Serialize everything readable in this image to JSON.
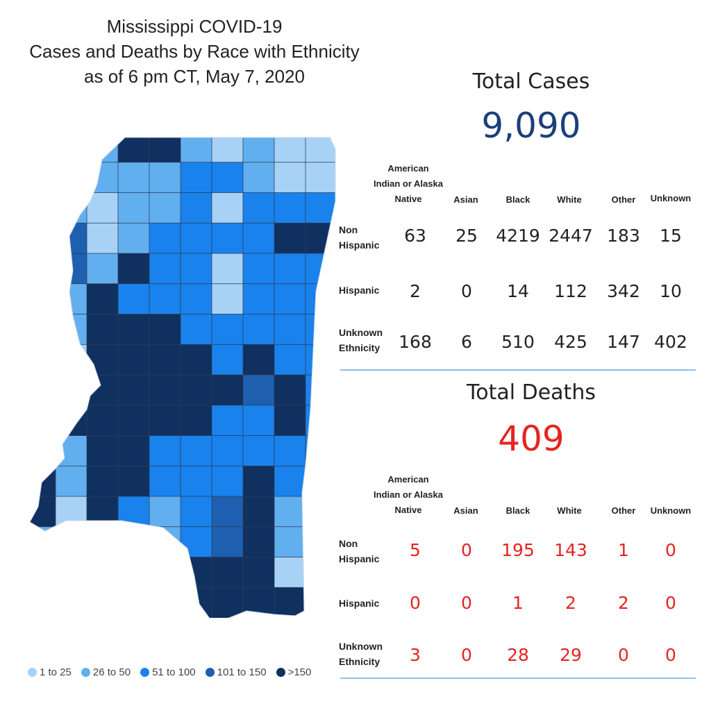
{
  "title": {
    "line1": "Mississippi COVID-19",
    "line2": "Cases and Deaths by Race with Ethnicity",
    "line3": "as of 6 pm CT, May 7, 2020"
  },
  "colors": {
    "cases_number": "#1b3f7a",
    "deaths_number": "#e52420",
    "bin_1_25": "#a8d2f5",
    "bin_26_50": "#62aff0",
    "bin_51_100": "#1a82ec",
    "bin_101_150": "#1e5fb0",
    "bin_over_150": "#10305f",
    "no_cases": "#d8d0cc"
  },
  "legend": [
    {
      "label": "1 to 25",
      "color": "#a8d2f5"
    },
    {
      "label": "26 to 50",
      "color": "#62aff0"
    },
    {
      "label": "51 to 100",
      "color": "#1a82ec"
    },
    {
      "label": "101 to 150",
      "color": "#1e5fb0"
    },
    {
      "label": ">150",
      "color": "#10305f"
    }
  ],
  "cases": {
    "label": "Total Cases",
    "total": "9,090",
    "headers": [
      "American Indian or Alaska Native",
      "Asian",
      "Black",
      "White",
      "Other",
      "Unknown"
    ],
    "rows": [
      {
        "label": "Non Hispanic",
        "values": [
          "63",
          "25",
          "4219",
          "2447",
          "183",
          "15"
        ]
      },
      {
        "label": "Hispanic",
        "values": [
          "2",
          "0",
          "14",
          "112",
          "342",
          "10"
        ]
      },
      {
        "label": "Unknown Ethnicity",
        "values": [
          "168",
          "6",
          "510",
          "425",
          "147",
          "402"
        ]
      }
    ]
  },
  "deaths": {
    "label": "Total Deaths",
    "total": "409",
    "headers": [
      "American Indian or Alaska Native",
      "Asian",
      "Black",
      "White",
      "Other",
      "Unknown"
    ],
    "rows": [
      {
        "label": "Non Hispanic",
        "values": [
          "5",
          "0",
          "195",
          "143",
          "1",
          "0"
        ]
      },
      {
        "label": "Hispanic",
        "values": [
          "0",
          "0",
          "1",
          "2",
          "2",
          "0"
        ]
      },
      {
        "label": "Unknown Ethnicity",
        "values": [
          "3",
          "0",
          "28",
          "29",
          "0",
          "0"
        ]
      }
    ]
  }
}
